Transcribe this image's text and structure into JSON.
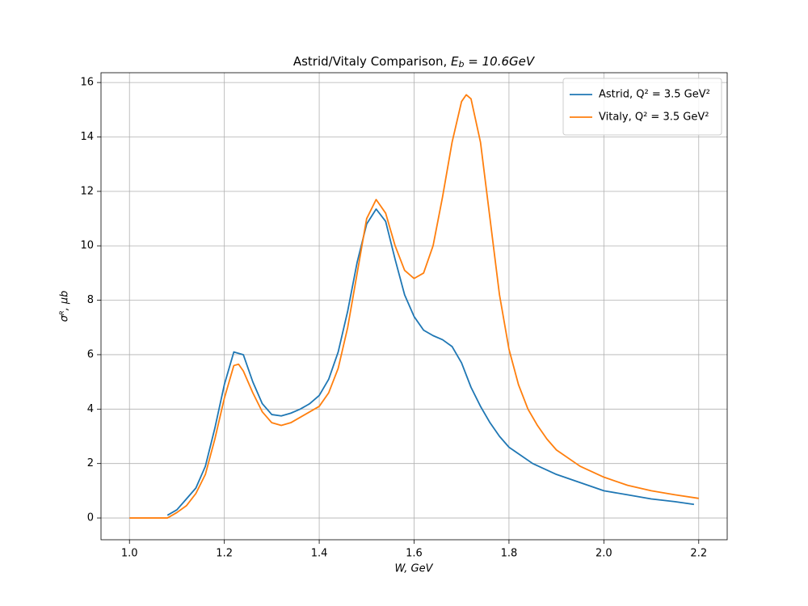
{
  "chart_data": {
    "type": "line",
    "title": {
      "text": "Astrid/Vitaly Comparison, ",
      "symbol": "E",
      "subscript": "b",
      "rest": " = 10.6GeV"
    },
    "x_label": "W, GeV",
    "y_label": "σᴿ, μb",
    "xlim": [
      0.94,
      2.26
    ],
    "ylim": [
      -0.8,
      16.36
    ],
    "xticks": [
      {
        "value": 1.0,
        "label": "1.0"
      },
      1.2,
      1.4,
      1.6,
      1.8,
      {
        "value": 2.0,
        "label": "2.0"
      },
      2.2
    ],
    "yticks": [
      0,
      2,
      4,
      6,
      8,
      10,
      12,
      14,
      16
    ],
    "grid": true,
    "legend": "upper right",
    "series": [
      {
        "name": "Astrid, Q² = 3.5 GeV²",
        "color": "#1f77b4",
        "x": [
          1.08,
          1.1,
          1.12,
          1.14,
          1.16,
          1.18,
          1.2,
          1.22,
          1.24,
          1.26,
          1.28,
          1.3,
          1.32,
          1.34,
          1.36,
          1.38,
          1.4,
          1.42,
          1.44,
          1.46,
          1.48,
          1.5,
          1.52,
          1.54,
          1.56,
          1.58,
          1.6,
          1.62,
          1.64,
          1.66,
          1.68,
          1.7,
          1.72,
          1.74,
          1.76,
          1.78,
          1.8,
          1.85,
          1.9,
          1.95,
          2.0,
          2.05,
          2.1,
          2.15,
          2.19
        ],
        "values": [
          0.1,
          0.3,
          0.7,
          1.1,
          1.9,
          3.3,
          4.9,
          6.1,
          6.0,
          5.0,
          4.2,
          3.8,
          3.75,
          3.85,
          4.0,
          4.2,
          4.5,
          5.1,
          6.1,
          7.6,
          9.4,
          10.8,
          11.35,
          10.9,
          9.5,
          8.2,
          7.4,
          6.9,
          6.7,
          6.55,
          6.3,
          5.7,
          4.8,
          4.1,
          3.5,
          3.0,
          2.6,
          2.0,
          1.6,
          1.3,
          1.0,
          0.85,
          0.7,
          0.6,
          0.5
        ]
      },
      {
        "name": "Vitaly, Q² = 3.5 GeV²",
        "color": "#ff7f0e",
        "x": [
          1.0,
          1.02,
          1.04,
          1.06,
          1.08,
          1.1,
          1.12,
          1.14,
          1.16,
          1.18,
          1.2,
          1.22,
          1.23,
          1.24,
          1.26,
          1.28,
          1.3,
          1.32,
          1.34,
          1.36,
          1.38,
          1.4,
          1.42,
          1.44,
          1.46,
          1.48,
          1.5,
          1.52,
          1.54,
          1.56,
          1.58,
          1.6,
          1.62,
          1.64,
          1.66,
          1.68,
          1.7,
          1.71,
          1.72,
          1.74,
          1.76,
          1.78,
          1.8,
          1.82,
          1.84,
          1.86,
          1.88,
          1.9,
          1.95,
          2.0,
          2.05,
          2.1,
          2.15,
          2.2
        ],
        "values": [
          0,
          0,
          0,
          0,
          0,
          0.2,
          0.45,
          0.9,
          1.6,
          2.9,
          4.4,
          5.6,
          5.65,
          5.4,
          4.6,
          3.9,
          3.5,
          3.4,
          3.5,
          3.7,
          3.9,
          4.1,
          4.6,
          5.5,
          7.0,
          9.0,
          11.0,
          11.7,
          11.2,
          10.0,
          9.1,
          8.8,
          9.0,
          10.0,
          11.8,
          13.8,
          15.3,
          15.55,
          15.4,
          13.8,
          11.0,
          8.2,
          6.2,
          4.9,
          4.0,
          3.4,
          2.9,
          2.5,
          1.9,
          1.5,
          1.2,
          1.0,
          0.85,
          0.72
        ]
      }
    ]
  }
}
